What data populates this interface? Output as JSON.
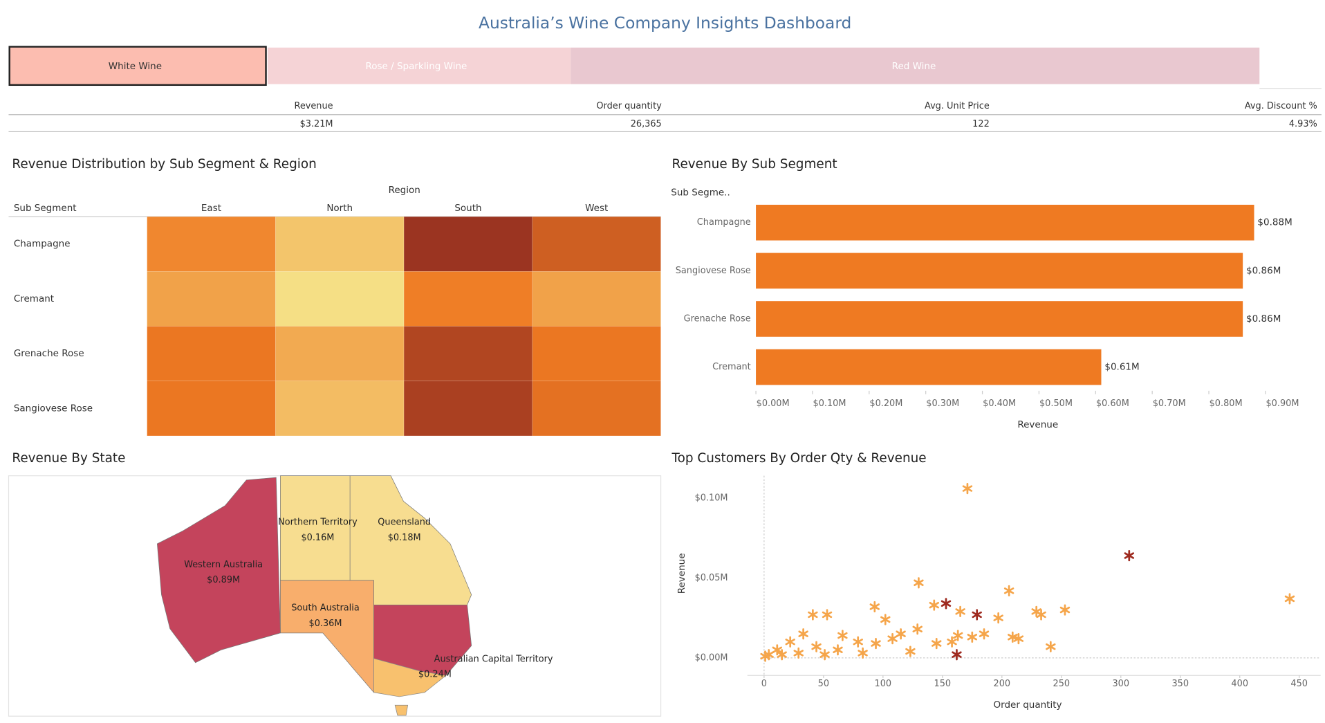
{
  "title": "Australia’s Wine Company Insights Dashboard",
  "tabs": [
    "White Wine",
    "Rose / Sparkling Wine",
    "Red Wine"
  ],
  "kpis": [
    {
      "label": "Revenue",
      "value": "$3.21M"
    },
    {
      "label": "Order quantity",
      "value": "26,365"
    },
    {
      "label": "Avg. Unit Price",
      "value": "122"
    },
    {
      "label": "Avg. Discount %",
      "value": "4.93%"
    }
  ],
  "chart_data": [
    {
      "type": "heatmap",
      "title": "Revenue Distribution by Sub Segment & Region",
      "row_title": "Sub Segment",
      "column_title": "Region",
      "rows": [
        "Champagne",
        "Cremant",
        "Grenache Rose",
        "Sangiovese Rose"
      ],
      "columns": [
        "East",
        "North",
        "South",
        "West"
      ],
      "values": [
        [
          0.19,
          0.12,
          0.32,
          0.25
        ],
        [
          0.16,
          0.09,
          0.2,
          0.16
        ],
        [
          0.21,
          0.15,
          0.29,
          0.21
        ],
        [
          0.21,
          0.13,
          0.3,
          0.22
        ]
      ],
      "colorscale": [
        "#f5df85",
        "#ef7a22",
        "#9b3421"
      ],
      "colorlim": [
        0.09,
        0.32
      ]
    },
    {
      "type": "bar",
      "orientation": "horizontal",
      "title": "Revenue By Sub Segment",
      "category_title": "Sub Segme..",
      "value_title": "Revenue",
      "categories": [
        "Champagne",
        "Sangiovese Rose",
        "Grenache Rose",
        "Cremant"
      ],
      "values": [
        0.88,
        0.86,
        0.86,
        0.61
      ],
      "value_labels": [
        "$0.88M",
        "$0.86M",
        "$0.86M",
        "$0.61M"
      ],
      "color": "#ef7a22",
      "xlim": [
        0,
        0.93
      ],
      "xticks": [
        {
          "value": 0,
          "label": "$0.00M"
        },
        {
          "value": 0.1,
          "label": "$0.10M"
        },
        {
          "value": 0.2,
          "label": "$0.20M"
        },
        {
          "value": 0.3,
          "label": "$0.30M"
        },
        {
          "value": 0.4,
          "label": "$0.40M"
        },
        {
          "value": 0.5,
          "label": "$0.50M"
        },
        {
          "value": 0.6,
          "label": "$0.60M"
        },
        {
          "value": 0.7,
          "label": "$0.70M"
        },
        {
          "value": 0.8,
          "label": "$0.80M"
        },
        {
          "value": 0.9,
          "label": "$0.90M"
        }
      ]
    },
    {
      "type": "map",
      "title": "Revenue By State",
      "regions": [
        "Western Australia",
        "Northern Territory",
        "Queensland",
        "South Australia",
        "Australian Capital Territory"
      ],
      "values": [
        0.89,
        0.16,
        0.18,
        0.36,
        0.24
      ],
      "value_labels": [
        "$0.89M",
        "$0.16M",
        "$0.18M",
        "$0.36M",
        "$0.24M"
      ],
      "colors": [
        "#c4445c",
        "#f7dd90",
        "#f7dd90",
        "#f8ae6c",
        "#c4445c"
      ]
    },
    {
      "type": "scatter",
      "title": "Top Customers By Order Qty & Revenue",
      "xlabel": "Order quantity",
      "ylabel": "Revenue",
      "xlim": [
        -14,
        468
      ],
      "ylim": [
        -0.011,
        0.114
      ],
      "xticks": [
        0,
        50,
        100,
        150,
        200,
        250,
        300,
        350,
        400,
        450
      ],
      "yticks": [
        {
          "value": 0,
          "label": "$0.00M"
        },
        {
          "value": 0.05,
          "label": "$0.05M"
        },
        {
          "value": 0.1,
          "label": "$0.10M"
        }
      ],
      "series": [
        {
          "color": "#f5a54a",
          "x": [
            171,
            130,
            206,
            442,
            93,
            143,
            165,
            253,
            229,
            233,
            197,
            41,
            53,
            102,
            129,
            163,
            185,
            209,
            214,
            241,
            145,
            123,
            94,
            79,
            66,
            33,
            22,
            11,
            4,
            44,
            62,
            108,
            158,
            1,
            15,
            29,
            51,
            83,
            175,
            115
          ],
          "values": [
            0.106,
            0.047,
            0.042,
            0.037,
            0.032,
            0.033,
            0.029,
            0.03,
            0.029,
            0.027,
            0.025,
            0.027,
            0.027,
            0.024,
            0.018,
            0.014,
            0.015,
            0.013,
            0.012,
            0.007,
            0.009,
            0.004,
            0.009,
            0.01,
            0.014,
            0.015,
            0.01,
            0.005,
            0.002,
            0.007,
            0.005,
            0.012,
            0.01,
            0.001,
            0.002,
            0.003,
            0.002,
            0.003,
            0.013,
            0.015
          ]
        },
        {
          "color": "#9e2a1f",
          "x": [
            307,
            153,
            179,
            162
          ],
          "values": [
            0.064,
            0.034,
            0.027,
            0.002
          ]
        }
      ]
    }
  ]
}
